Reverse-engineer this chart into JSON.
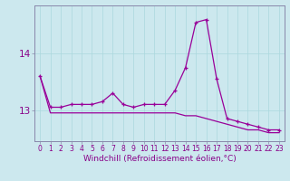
{
  "xlabel": "Windchill (Refroidissement éolien,°C)",
  "background_color": "#cce8ee",
  "line_color": "#990099",
  "hours": [
    0,
    1,
    2,
    3,
    4,
    5,
    6,
    7,
    8,
    9,
    10,
    11,
    12,
    13,
    14,
    15,
    16,
    17,
    18,
    19,
    20,
    21,
    22,
    23
  ],
  "series1": [
    13.6,
    13.05,
    13.05,
    13.1,
    13.1,
    13.1,
    13.15,
    13.3,
    13.1,
    13.05,
    13.1,
    13.1,
    13.1,
    13.35,
    13.75,
    14.55,
    14.6,
    13.55,
    12.85,
    12.8,
    12.75,
    12.7,
    12.65,
    12.65
  ],
  "series2": [
    13.6,
    12.95,
    12.95,
    12.95,
    12.95,
    12.95,
    12.95,
    12.95,
    12.95,
    12.95,
    12.95,
    12.95,
    12.95,
    12.95,
    12.9,
    12.9,
    12.85,
    12.8,
    12.75,
    12.7,
    12.65,
    12.65,
    12.6,
    12.6
  ],
  "yticks": [
    13,
    14
  ],
  "ylim": [
    12.45,
    14.85
  ],
  "xlim": [
    -0.5,
    23.5
  ],
  "grid_color": "#aad8dd",
  "tick_color": "#880088",
  "axis_color": "#8888aa",
  "xlabel_fontsize": 6.5,
  "ytick_fontsize": 7.5,
  "xtick_fontsize": 5.5
}
